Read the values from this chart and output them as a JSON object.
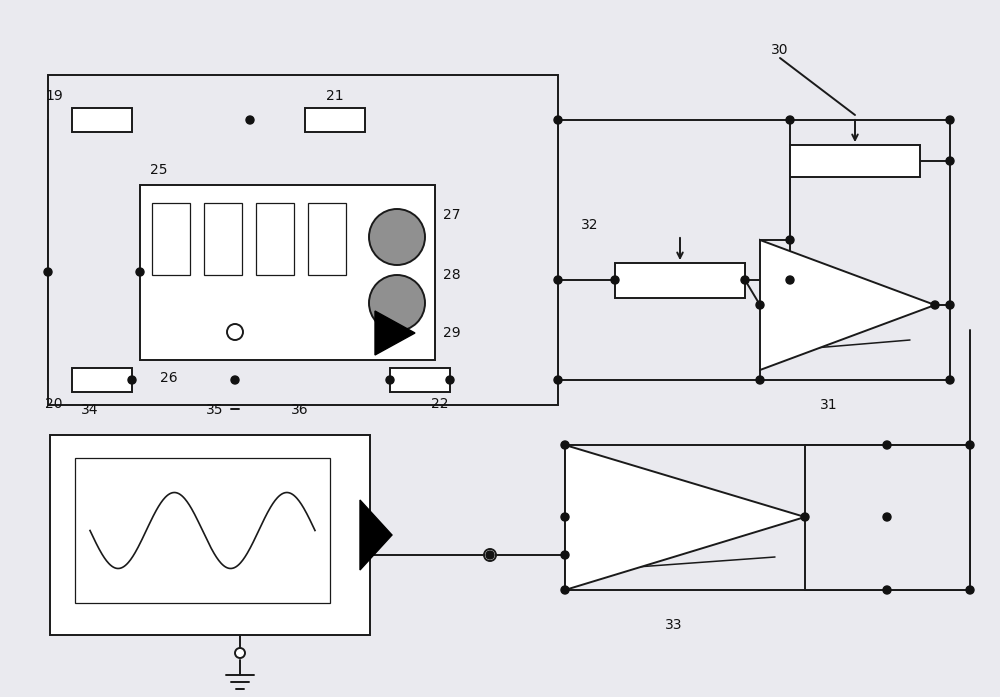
{
  "bg_color": "#eaeaef",
  "line_color": "#1a1a1a",
  "line_width": 1.4,
  "box_color": "white",
  "dot_color": "#111111",
  "label_color": "#111111",
  "speaker_gray": "#909090"
}
